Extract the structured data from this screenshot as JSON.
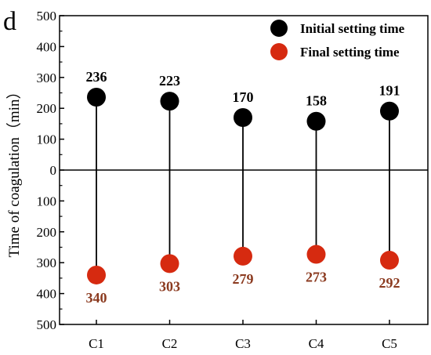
{
  "panel_label": "d",
  "chart_data": {
    "type": "scatter",
    "ylabel": "Time of coagulation（min）",
    "categories": [
      "C1",
      "C2",
      "C3",
      "C4",
      "C5"
    ],
    "ylim": [
      -500,
      500
    ],
    "yticks": [
      "500",
      "400",
      "300",
      "200",
      "100",
      "0",
      "100",
      "200",
      "300",
      "400",
      "500"
    ],
    "ytick_values": [
      500,
      400,
      300,
      200,
      100,
      0,
      -100,
      -200,
      -300,
      -400,
      -500
    ],
    "zero_line": true,
    "legend_position": "top-right",
    "series": [
      {
        "name": "Initial setting time",
        "values": [
          236,
          223,
          170,
          158,
          191
        ],
        "labels": [
          "236",
          "223",
          "170",
          "158",
          "191"
        ],
        "direction": "up",
        "color": "#000000"
      },
      {
        "name": "Final  setting time",
        "values": [
          340,
          303,
          279,
          273,
          292
        ],
        "labels": [
          "340",
          "303",
          "279",
          "273",
          "292"
        ],
        "direction": "down",
        "color": "#d62a10",
        "label_color": "#8b3a1f"
      }
    ]
  }
}
